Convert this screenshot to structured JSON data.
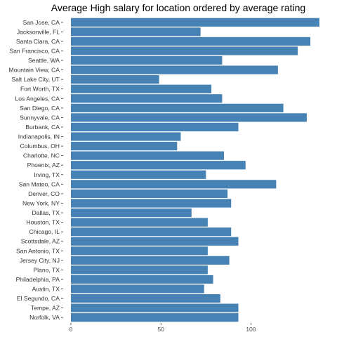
{
  "chart_data": {
    "type": "bar",
    "orientation": "horizontal",
    "title": "Average High salary for location ordered by average rating",
    "xlabel": "",
    "ylabel": "",
    "categories": [
      "San Jose, CA",
      "Jacksonville, FL",
      "Santa Clara, CA",
      "San Francisco, CA",
      "Seattle, WA",
      "Mountain View, CA",
      "Salt Lake City, UT",
      "Fort Worth, TX",
      "Los Angeles, CA",
      "San Diego, CA",
      "Sunnyvale, CA",
      "Burbank, CA",
      "Indianapolis, IN",
      "Columbus, OH",
      "Charlotte, NC",
      "Phoenix, AZ",
      "Irving, TX",
      "San Mateo, CA",
      "Denver, CO",
      "New York, NY",
      "Dallas, TX",
      "Houston, TX",
      "Chicago, IL",
      "Scottsdale, AZ",
      "San Antonio, TX",
      "Jersey City, NJ",
      "Plano, TX",
      "Philadelphia, PA",
      "Austin, TX",
      "El Segundo, CA",
      "Tempe, AZ",
      "Norfolk, VA"
    ],
    "values": [
      138,
      72,
      133,
      126,
      84,
      115,
      49,
      78,
      84,
      118,
      131,
      93,
      61,
      59,
      85,
      97,
      75,
      114,
      87,
      89,
      67,
      76,
      89,
      93,
      76,
      88,
      76,
      79,
      74,
      83,
      93,
      93
    ],
    "xlim": [
      0,
      140
    ],
    "xticks": [
      0,
      50,
      100
    ],
    "grid": false,
    "bar_color": "#4682b4",
    "background": "#ffffff"
  }
}
